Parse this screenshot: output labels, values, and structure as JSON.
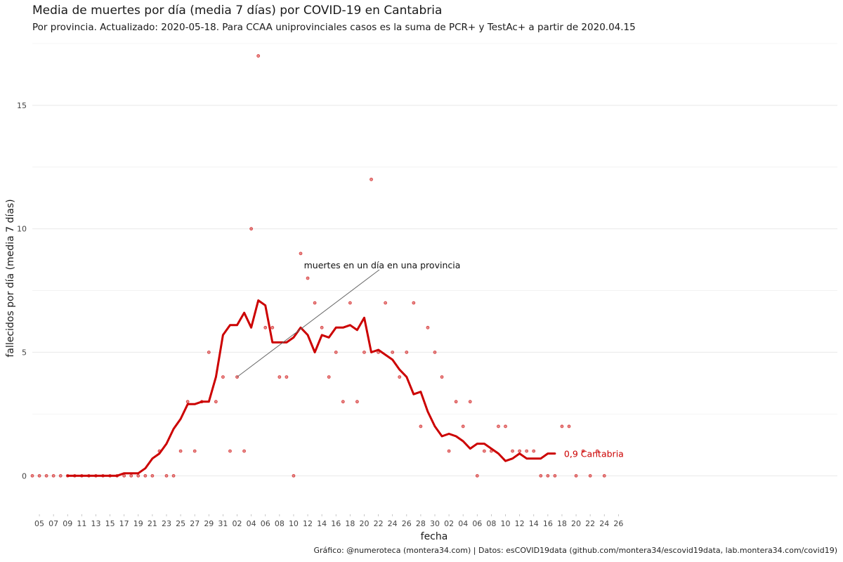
{
  "title": "Media de muertes por día (media 7 días) por COVID-19 en Cantabria",
  "subtitle": "Por provincia. Actualizado: 2020-05-18. Para CCAA uniprovinciales casos es la suma de PCR+ y TestAc+ a partir de 2020.04.15",
  "caption": "Gráfico: @numeroteca (montera34.com) | Datos: esCOVID19data (github.com/montera34/escovid19data, lab.montera34.com/covid19)",
  "colors": {
    "series": "#cc0000",
    "grid": "#ebebeb",
    "annotation_line": "#666666"
  },
  "chart_data": {
    "type": "line",
    "xlabel": "fecha",
    "ylabel": "fallecidos por día (media 7 días)",
    "x_start": "2020-03-04",
    "x_end": "2020-06-26",
    "ylim": [
      -1.5,
      17.5
    ],
    "y_ticks": [
      0,
      5,
      10,
      15
    ],
    "y_tick_labels": [
      "0",
      "5",
      "10",
      "15"
    ],
    "x_tick_labels": [
      "05",
      "07",
      "09",
      "11",
      "13",
      "15",
      "17",
      "19",
      "21",
      "23",
      "25",
      "27",
      "29",
      "31",
      "02",
      "04",
      "06",
      "08",
      "10",
      "12",
      "14",
      "16",
      "18",
      "20",
      "22",
      "24",
      "26",
      "28",
      "30",
      "02",
      "04",
      "06",
      "08",
      "10",
      "12",
      "14",
      "16",
      "18",
      "20",
      "22",
      "24",
      "26"
    ],
    "grid": true,
    "points_name": "muertes en un día en una provincia",
    "points_start": "2020-03-04",
    "points": [
      0,
      0,
      0,
      0,
      0,
      0,
      0,
      0,
      0,
      0,
      0,
      0,
      0,
      0,
      0,
      0,
      0,
      0,
      1,
      0,
      0,
      1,
      3,
      1,
      3,
      5,
      3,
      4,
      1,
      4,
      1,
      10,
      17,
      6,
      6,
      4,
      4,
      0,
      9,
      8,
      7,
      6,
      4,
      5,
      3,
      7,
      3,
      5,
      12,
      5,
      7,
      5,
      4,
      5,
      7,
      2,
      6,
      5,
      4,
      1,
      3,
      2,
      3,
      0,
      1,
      1,
      2,
      2,
      1,
      1,
      1,
      1,
      0,
      0,
      0,
      2,
      2,
      0,
      1,
      0,
      1,
      0
    ],
    "series": [
      {
        "name": "Cantabria",
        "start": "2020-03-09",
        "values": [
          0,
          0,
          0,
          0,
          0,
          0,
          0,
          0,
          0.1,
          0.1,
          0.1,
          0.3,
          0.7,
          0.9,
          1.3,
          1.9,
          2.3,
          2.9,
          2.9,
          3,
          3,
          4,
          5.7,
          6.1,
          6.1,
          6.6,
          6,
          7.1,
          6.9,
          5.4,
          5.4,
          5.4,
          5.6,
          6,
          5.7,
          5,
          5.7,
          5.6,
          6,
          6,
          6.1,
          5.9,
          6.4,
          5,
          5.1,
          4.9,
          4.7,
          4.3,
          4,
          3.3,
          3.4,
          2.6,
          2,
          1.6,
          1.7,
          1.6,
          1.4,
          1.1,
          1.3,
          1.3,
          1.1,
          0.9,
          0.6,
          0.7,
          0.9,
          0.7,
          0.7,
          0.7,
          0.9,
          0.9
        ]
      }
    ],
    "end_label": "0,9 Cantabria",
    "annotation": {
      "text": "muertes en un día en una provincia",
      "target_date": "2020-04-02",
      "target_value": 4
    }
  }
}
